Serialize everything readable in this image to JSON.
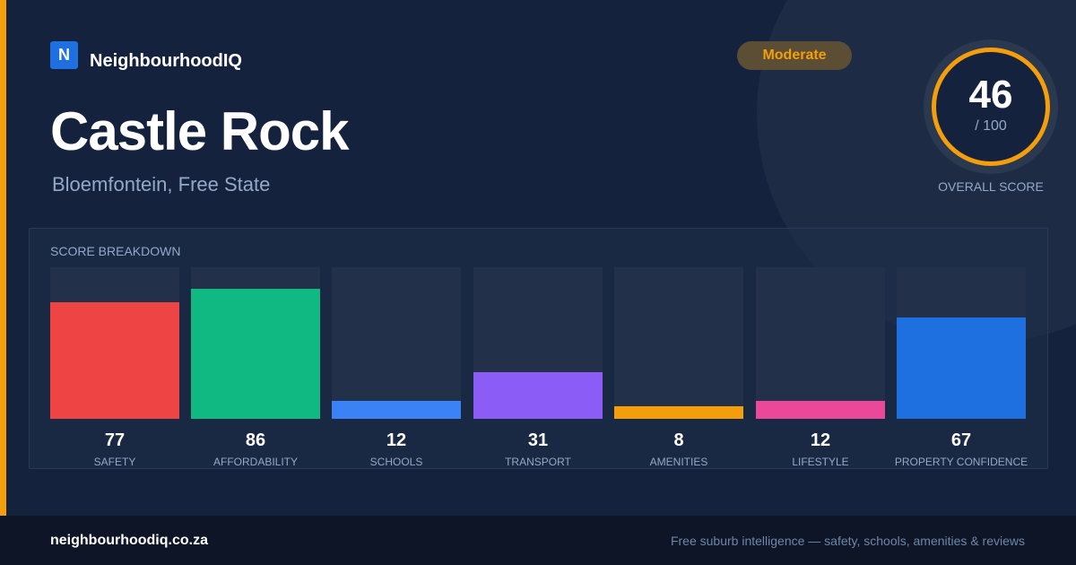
{
  "brand": {
    "logo_letter": "N",
    "name": "NeighbourhoodIQ",
    "logo_color": "#1e6fe0"
  },
  "suburb": {
    "name": "Castle Rock",
    "location": "Bloemfontein, Free State"
  },
  "rating": {
    "label": "Moderate",
    "color": "#f59e0b"
  },
  "overall": {
    "score": "46",
    "max_label": "/ 100",
    "caption": "OVERALL SCORE",
    "ring_color": "#f59e0b"
  },
  "breakdown": {
    "title": "SCORE BREAKDOWN",
    "max": 100,
    "items": [
      {
        "label": "SAFETY",
        "value": 77,
        "color": "#ef4444"
      },
      {
        "label": "AFFORDABILITY",
        "value": 86,
        "color": "#10b981"
      },
      {
        "label": "SCHOOLS",
        "value": 12,
        "color": "#3b82f6"
      },
      {
        "label": "TRANSPORT",
        "value": 31,
        "color": "#8b5cf6"
      },
      {
        "label": "AMENITIES",
        "value": 8,
        "color": "#f59e0b"
      },
      {
        "label": "LIFESTYLE",
        "value": 12,
        "color": "#ec4899"
      },
      {
        "label": "PROPERTY CONFIDENCE",
        "value": 67,
        "color": "#1e6fe0"
      }
    ]
  },
  "footer": {
    "domain": "neighbourhoodiq.co.za",
    "tagline": "Free suburb intelligence — safety, schools, amenities & reviews"
  },
  "colors": {
    "background": "#15223d",
    "accent": "#f59e0b",
    "muted_text": "#93a9c8"
  }
}
